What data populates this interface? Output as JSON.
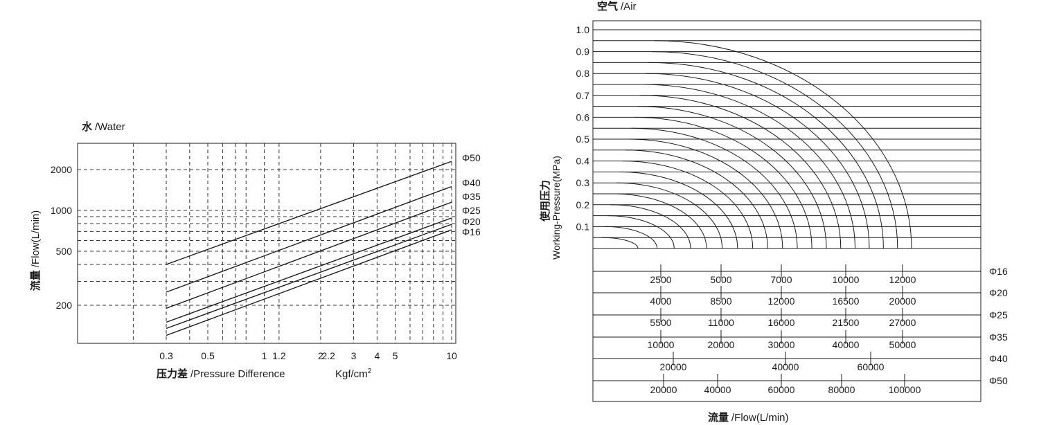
{
  "chart_data": [
    {
      "type": "line",
      "title_cn": "水",
      "title": "/Water",
      "xlabel_cn": "压力差",
      "xlabel": "/Pressure Difference",
      "xunit_text": "Kgf/cm",
      "xunit_sup": "2",
      "ylabel_cn": "流量",
      "ylabel": "/Flow(L/min)",
      "x_scale": "log",
      "y_scale": "log",
      "xlim": [
        0.3,
        10
      ],
      "ylim": [
        100,
        3000
      ],
      "grid": "dashed",
      "x_ticks": [
        {
          "value": 0.3,
          "label": "0.3"
        },
        {
          "value": 0.5,
          "label": "0.5"
        },
        {
          "value": 1,
          "label": "1"
        },
        {
          "value": 1.2,
          "label": "1.2"
        },
        {
          "value": 2,
          "label": "2"
        },
        {
          "value": 2.2,
          "label": "2.2"
        },
        {
          "value": 3,
          "label": "3"
        },
        {
          "value": 4,
          "label": "4"
        },
        {
          "value": 5,
          "label": "5"
        },
        {
          "value": 10,
          "label": "10"
        }
      ],
      "x_grid": [
        0.2,
        0.3,
        0.4,
        0.5,
        0.6,
        0.7,
        0.8,
        1,
        1.2,
        2,
        3,
        4,
        5,
        6,
        7,
        8,
        9,
        10
      ],
      "y_ticks": [
        {
          "value": 200,
          "label": "200"
        },
        {
          "value": 500,
          "label": "500"
        },
        {
          "value": 1000,
          "label": "1000"
        },
        {
          "value": 2000,
          "label": "2000"
        }
      ],
      "y_grid": [
        200,
        300,
        400,
        500,
        600,
        700,
        800,
        900,
        1000,
        2000
      ],
      "series": [
        {
          "name": "Φ50",
          "x": [
            0.3,
            10
          ],
          "y": [
            400,
            2300
          ]
        },
        {
          "name": "Φ40",
          "x": [
            0.3,
            10
          ],
          "y": [
            250,
            1500
          ]
        },
        {
          "name": "Φ35",
          "x": [
            0.3,
            10
          ],
          "y": [
            190,
            1150
          ]
        },
        {
          "name": "Φ25",
          "x": [
            0.3,
            10
          ],
          "y": [
            150,
            880
          ]
        },
        {
          "name": "Φ20",
          "x": [
            0.3,
            10
          ],
          "y": [
            135,
            790
          ]
        },
        {
          "name": "Φ16",
          "x": [
            0.3,
            10
          ],
          "y": [
            120,
            720
          ]
        }
      ]
    },
    {
      "type": "line",
      "title_cn": "空气",
      "title": "/Air",
      "xlabel_cn": "流量",
      "xlabel": "/Flow(L/min)",
      "ylabel_cn": "使用压力",
      "ylabel": "Working-Pressure(MPa)",
      "ylim": [
        0,
        1.0
      ],
      "y_ticks": [
        "0.1",
        "0.2",
        "0.3",
        "0.4",
        "0.5",
        "0.6",
        "0.7",
        "0.8",
        "0.9",
        "1.0"
      ],
      "curve_count": 19,
      "flow_scales": [
        {
          "name": "Φ16",
          "ticks": [
            {
              "value": 2500,
              "label": "2500"
            },
            {
              "value": 5000,
              "label": "5000"
            },
            {
              "value": 7000,
              "label": "7000"
            },
            {
              "value": 10000,
              "label": "10000"
            },
            {
              "value": 12000,
              "label": "12000"
            }
          ]
        },
        {
          "name": "Φ20",
          "ticks": [
            {
              "value": 4000,
              "label": "4000"
            },
            {
              "value": 8500,
              "label": "8500"
            },
            {
              "value": 12000,
              "label": "12000"
            },
            {
              "value": 16500,
              "label": "16500"
            },
            {
              "value": 20000,
              "label": "20000"
            }
          ]
        },
        {
          "name": "Φ25",
          "ticks": [
            {
              "value": 5500,
              "label": "5500"
            },
            {
              "value": 11000,
              "label": "11000"
            },
            {
              "value": 16000,
              "label": "16000"
            },
            {
              "value": 21500,
              "label": "21500"
            },
            {
              "value": 27000,
              "label": "27000"
            }
          ]
        },
        {
          "name": "Φ35",
          "ticks": [
            {
              "value": 10000,
              "label": "10000"
            },
            {
              "value": 20000,
              "label": "20000"
            },
            {
              "value": 30000,
              "label": "30000"
            },
            {
              "value": 40000,
              "label": "40000"
            },
            {
              "value": 50000,
              "label": "50000"
            }
          ]
        },
        {
          "name": "Φ40",
          "ticks": [
            {
              "value": 20000,
              "label": "20000"
            },
            {
              "value": 40000,
              "label": "40000"
            },
            {
              "value": 60000,
              "label": "60000"
            }
          ]
        },
        {
          "name": "Φ50",
          "ticks": [
            {
              "value": 20000,
              "label": "20000"
            },
            {
              "value": 40000,
              "label": "40000"
            },
            {
              "value": 60000,
              "label": "60000"
            },
            {
              "value": 80000,
              "label": "80000"
            },
            {
              "value": 100000,
              "label": "100000"
            }
          ]
        }
      ]
    }
  ]
}
